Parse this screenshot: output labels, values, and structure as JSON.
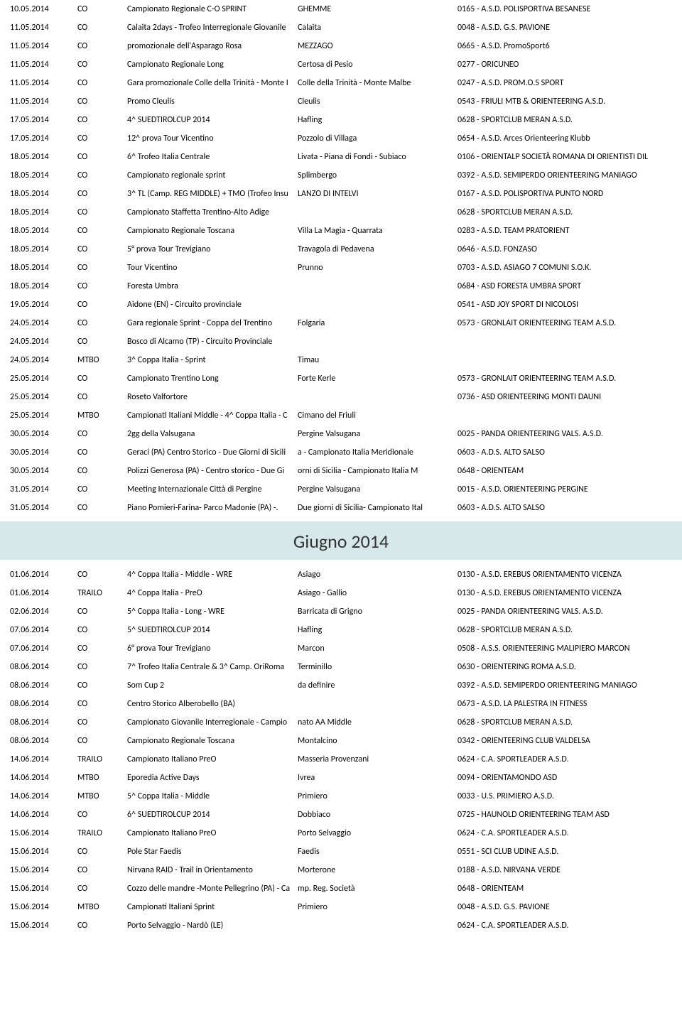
{
  "monthHeader": "Giugno 2014",
  "rows1": [
    {
      "date": "10.05.2014",
      "type": "CO",
      "desc": "Campionato Regionale C-O SPRINT",
      "loc": "GHEMME",
      "org": "0165 - A.S.D. POLISPORTIVA BESANESE"
    },
    {
      "date": "11.05.2014",
      "type": "CO",
      "desc": "Calaita 2days - Trofeo Interregionale Giovanile",
      "loc": "Calaita",
      "org": "0048 - A.S.D. G.S. PAVIONE"
    },
    {
      "date": "11.05.2014",
      "type": "CO",
      "desc": "promozionale dell'Asparago Rosa",
      "loc": "MEZZAGO",
      "org": "0665 - A.S.D. PromoSport6"
    },
    {
      "date": "11.05.2014",
      "type": "CO",
      "desc": "Campionato Regionale Long",
      "loc": "Certosa di Pesio",
      "org": "0277 - ORICUNEO"
    },
    {
      "date": "11.05.2014",
      "type": "CO",
      "desc": "Gara promozionale Colle della Trinità - Monte I",
      "loc": "Colle della Trinità - Monte Malbe",
      "org": "0247 - A.S.D. PROM.O.S  SPORT"
    },
    {
      "date": "11.05.2014",
      "type": "CO",
      "desc": "Promo Cleulis",
      "loc": "Cleulis",
      "org": "0543 - FRIULI MTB &amp; ORIENTEERING A.S.D."
    },
    {
      "date": "17.05.2014",
      "type": "CO",
      "desc": "4^ SUEDTIROLCUP 2014",
      "loc": "Hafling",
      "org": "0628 - SPORTCLUB MERAN A.S.D."
    },
    {
      "date": "17.05.2014",
      "type": "CO",
      "desc": "12^ prova Tour Vicentino",
      "loc": "Pozzolo di Villaga",
      "org": "0654 - A.S.D. Arces Orienteering Klubb"
    },
    {
      "date": "18.05.2014",
      "type": "CO",
      "desc": "6^ Trofeo Italia Centrale",
      "loc": " Livata - Piana di Fondi - Subiaco",
      "org": "0106 - ORIENTALP SOCIETÀ ROMANA DI ORIENTISTI DIL"
    },
    {
      "date": "18.05.2014",
      "type": "CO",
      "desc": "Campionato regionale sprint",
      "loc": "Splimbergo",
      "org": "0392 - A.S.D. SEMIPERDO ORIENTEERING MANIAGO"
    },
    {
      "date": "18.05.2014",
      "type": "CO",
      "desc": "3^ TL (Camp. REG MIDDLE) + TMO (Trofeo Insu",
      "loc": "LANZO DI INTELVI",
      "org": "0167 - A.S.D. POLISPORTIVA PUNTO NORD"
    },
    {
      "date": "18.05.2014",
      "type": "CO",
      "desc": "Campionato Staffetta Trentino-Alto Adige",
      "loc": "",
      "org": "0628 - SPORTCLUB MERAN A.S.D."
    },
    {
      "date": "18.05.2014",
      "type": "CO",
      "desc": "Campionato Regionale Toscana",
      "loc": "Villa La Magia - Quarrata",
      "org": "0283 - A.S.D. TEAM PRATORIENT"
    },
    {
      "date": "18.05.2014",
      "type": "CO",
      "desc": "5° prova Tour Trevigiano",
      "loc": "Travagola di Pedavena",
      "org": "0646 - A.S.D. FONZASO"
    },
    {
      "date": "18.05.2014",
      "type": "CO",
      "desc": "Tour Vicentino",
      "loc": "Prunno",
      "org": "0703 - A.S.D. ASIAGO 7 COMUNI S.O.K."
    },
    {
      "date": "18.05.2014",
      "type": "CO",
      "desc": "Foresta Umbra",
      "loc": "",
      "org": "0684 - ASD FORESTA UMBRA SPORT"
    },
    {
      "date": "19.05.2014",
      "type": "CO",
      "desc": "Aidone (EN) - Circuito provinciale",
      "loc": "",
      "org": "0541 - ASD JOY SPORT DI NICOLOSI"
    },
    {
      "date": "24.05.2014",
      "type": "CO",
      "desc": "Gara regionale Sprint - Coppa del Trentino",
      "loc": "Folgaria",
      "org": "0573 - GRONLAIT ORIENTEERING TEAM A.S.D."
    },
    {
      "date": "24.05.2014",
      "type": "CO",
      "desc": "Bosco di Alcamo (TP) - Circuito Provinciale",
      "loc": "",
      "org": ""
    },
    {
      "date": "24.05.2014",
      "type": "MTBO",
      "desc": "3^ Coppa Italia - Sprint",
      "loc": "Timau",
      "org": ""
    },
    {
      "date": "25.05.2014",
      "type": "CO",
      "desc": "Campionato Trentino Long",
      "loc": "Forte Kerle",
      "org": "0573 - GRONLAIT ORIENTEERING TEAM A.S.D."
    },
    {
      "date": "25.05.2014",
      "type": "CO",
      "desc": "Roseto Valfortore",
      "loc": "",
      "org": "0736 - ASD ORIENTEERING MONTI DAUNI"
    },
    {
      "date": "25.05.2014",
      "type": "MTBO",
      "desc": "Campionati Italiani Middle - 4^ Coppa Italia - C",
      "loc": "Cimano del Friuli",
      "org": ""
    },
    {
      "date": "30.05.2014",
      "type": "CO",
      "desc": "2gg della Valsugana",
      "loc": "Pergine Valsugana",
      "org": "0025 - PANDA ORIENTEERING VALS. A.S.D."
    },
    {
      "date": "30.05.2014",
      "type": "CO",
      "desc": "Geraci (PA) Centro Storico -  Due Giorni di Sicili",
      "loc": "a - Campionato Italia Meridionale",
      "org": "0603 - A.D.S. ALTO SALSO"
    },
    {
      "date": "30.05.2014",
      "type": "CO",
      "desc": "Polizzi Generosa (PA) - Centro storico -  Due Gi",
      "loc": "orni di Sicilia - Campionato Italia M",
      "org": "0648 - ORIENTEAM"
    },
    {
      "date": "31.05.2014",
      "type": "CO",
      "desc": "Meeting Internazionale Città di Pergine",
      "loc": "Pergine Valsugana",
      "org": "0015 - A.S.D. ORIENTEERING PERGINE"
    },
    {
      "date": "31.05.2014",
      "type": "CO",
      "desc": "Piano Pomieri-Farina- Parco Madonie (PA) -.",
      "loc": "Due giorni di Sicilia- Campionato Ital",
      "org": "0603 - A.D.S. ALTO SALSO"
    }
  ],
  "rows2": [
    {
      "date": "01.06.2014",
      "type": "CO",
      "desc": "4^ Coppa Italia - Middle - WRE",
      "loc": "Asiago",
      "org": "0130 - A.S.D. EREBUS ORIENTAMENTO VICENZA"
    },
    {
      "date": "01.06.2014",
      "type": "TRAILO",
      "desc": "4^ Coppa Italia - PreO",
      "loc": "Asiago - Gallio",
      "org": "0130 - A.S.D. EREBUS ORIENTAMENTO VICENZA"
    },
    {
      "date": "02.06.2014",
      "type": "CO",
      "desc": "5^ Coppa Italia - Long - WRE",
      "loc": "Barricata di Grigno",
      "org": "0025 - PANDA ORIENTEERING VALS. A.S.D."
    },
    {
      "date": "07.06.2014",
      "type": "CO",
      "desc": "5^ SUEDTIROLCUP 2014",
      "loc": "Hafling",
      "org": "0628 - SPORTCLUB MERAN A.S.D."
    },
    {
      "date": "07.06.2014",
      "type": "CO",
      "desc": "6° prova Tour Trevigiano",
      "loc": "Marcon",
      "org": "0508 - A.S.S. ORIENTEERING MALIPIERO MARCON"
    },
    {
      "date": "08.06.2014",
      "type": "CO",
      "desc": "7^ Trofeo Italia Centrale & 3^ Camp. OriRoma",
      "loc": "Terminillo",
      "org": "0630 - ORIENTERING ROMA A.S.D."
    },
    {
      "date": "08.06.2014",
      "type": "CO",
      "desc": "Som Cup 2",
      "loc": "da definire",
      "org": "0392 - A.S.D. SEMIPERDO ORIENTEERING MANIAGO"
    },
    {
      "date": "08.06.2014",
      "type": "CO",
      "desc": "Centro Storico Alberobello (BA)",
      "loc": "",
      "org": "0673 - A.S.D. LA PALESTRA IN FITNESS"
    },
    {
      "date": "08.06.2014",
      "type": "CO",
      "desc": "Campionato Giovanile Interregionale - Campio",
      "loc": "nato AA Middle",
      "org": "0628 - SPORTCLUB MERAN A.S.D."
    },
    {
      "date": "08.06.2014",
      "type": "CO",
      "desc": "Campionato Regionale Toscana",
      "loc": "Montalcino",
      "org": "0342 - ORIENTEERING CLUB VALDELSA"
    },
    {
      "date": "14.06.2014",
      "type": "TRAILO",
      "desc": "Campionato Italiano PreO",
      "loc": "Masseria Provenzani",
      "org": "0624 - C.A. SPORTLEADER A.S.D."
    },
    {
      "date": "14.06.2014",
      "type": "MTBO",
      "desc": "Eporedia Active Days",
      "loc": "Ivrea",
      "org": "0094 - ORIENTAMONDO ASD"
    },
    {
      "date": "14.06.2014",
      "type": "MTBO",
      "desc": "5^ Coppa Italia - Middle",
      "loc": "Primiero",
      "org": "0033 - U.S. PRIMIERO A.S.D."
    },
    {
      "date": "14.06.2014",
      "type": "CO",
      "desc": "6^ SUEDTIROLCUP 2014",
      "loc": "Dobbiaco",
      "org": "0725 - HAUNOLD ORIENTEERING TEAM ASD"
    },
    {
      "date": "15.06.2014",
      "type": "TRAILO",
      "desc": "Campionato Italiano PreO",
      "loc": "Porto Selvaggio",
      "org": "0624 - C.A. SPORTLEADER A.S.D."
    },
    {
      "date": "15.06.2014",
      "type": "CO",
      "desc": "Pole Star Faedis",
      "loc": "Faedis",
      "org": "0551 - SCI CLUB UDINE A.S.D."
    },
    {
      "date": "15.06.2014",
      "type": "CO",
      "desc": "Nirvana RAID - Trail in Orientamento",
      "loc": "Morterone",
      "org": "0188 - A.S.D. NIRVANA VERDE"
    },
    {
      "date": "15.06.2014",
      "type": "CO",
      "desc": "Cozzo delle mandre -Monte Pellegrino (PA) - Ca",
      "loc": "mp. Reg. Società",
      "org": "0648 - ORIENTEAM"
    },
    {
      "date": "15.06.2014",
      "type": "MTBO",
      "desc": "Campionati Italiani Sprint",
      "loc": "Primiero",
      "org": "0048 - A.S.D. G.S. PAVIONE"
    },
    {
      "date": "15.06.2014",
      "type": "CO",
      "desc": "Porto Selvaggio - Nardò (LE)",
      "loc": "",
      "org": "0624 - C.A. SPORTLEADER A.S.D."
    }
  ]
}
